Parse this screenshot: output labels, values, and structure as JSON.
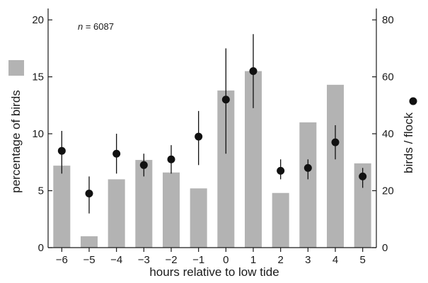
{
  "chart_data": {
    "type": "bar",
    "categories": [
      "−6",
      "−5",
      "−4",
      "−3",
      "−2",
      "−1",
      "0",
      "1",
      "2",
      "3",
      "4",
      "5"
    ],
    "xlabel": "hours relative to low tide",
    "ylabel_left": "percentage of birds",
    "ylabel_right": "birds / flock",
    "annotation_n": "n",
    "annotation_value": " = 6087",
    "left_axis": {
      "ylim": [
        0,
        21
      ],
      "ticks": [
        0,
        5,
        10,
        15,
        20
      ]
    },
    "right_axis": {
      "ylim": [
        0,
        84
      ],
      "ticks": [
        0,
        20,
        40,
        60,
        80
      ]
    },
    "grid": false,
    "series": [
      {
        "type": "bar",
        "axis": "left",
        "color": "#b3b3b3",
        "legend_marker": "grey-square",
        "values": [
          7.2,
          1.0,
          6.0,
          7.7,
          6.6,
          5.2,
          13.8,
          15.5,
          4.8,
          11.0,
          14.3,
          7.4
        ]
      },
      {
        "type": "scatter",
        "axis": "right",
        "color": "#111111",
        "legend_marker": "black-dot",
        "values": [
          34,
          19,
          33,
          29,
          31,
          39,
          52,
          62,
          27,
          28,
          37,
          25
        ],
        "err_low": [
          26,
          12,
          26,
          25,
          26,
          29,
          33,
          49,
          24,
          24,
          31,
          21
        ],
        "err_high": [
          41,
          25,
          40,
          33,
          36,
          48,
          70,
          75,
          31,
          31,
          43,
          28
        ]
      }
    ]
  }
}
